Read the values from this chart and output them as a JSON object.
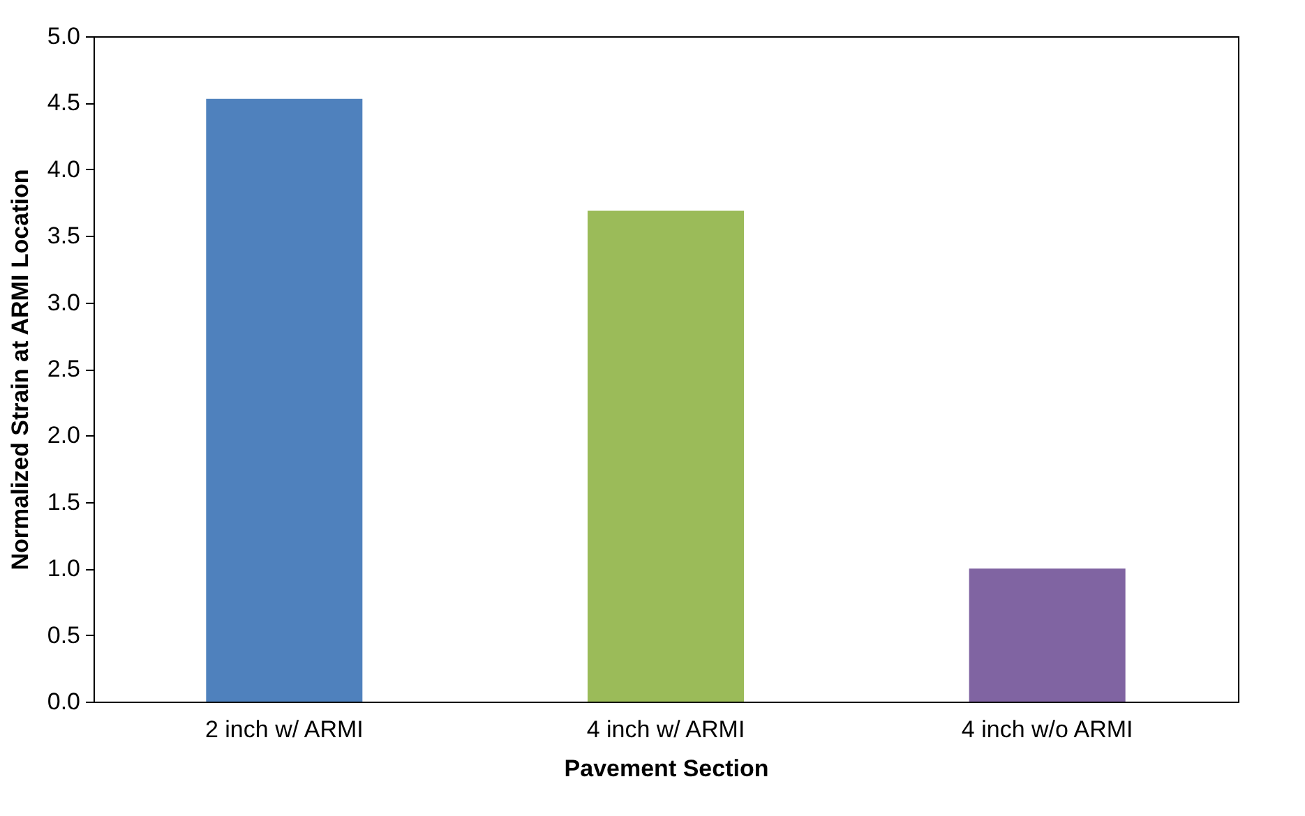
{
  "chart_data": {
    "type": "bar",
    "xlabel": "Pavement Section",
    "ylabel": "Normalized Strain at ARMI Location",
    "categories": [
      "2 inch w/ ARMI",
      "4 inch w/ ARMI",
      "4 inch w/o ARMI"
    ],
    "values": [
      4.53,
      3.69,
      1.0
    ],
    "colors": [
      "#4f81bd",
      "#9bbb59",
      "#8064a2"
    ],
    "ylim": [
      0,
      5
    ],
    "yticks": [
      {
        "value": 0,
        "label": "0.0"
      },
      {
        "value": 0.5,
        "label": "0.5"
      },
      {
        "value": 1,
        "label": "1.0"
      },
      {
        "value": 1.5,
        "label": "1.5"
      },
      {
        "value": 2,
        "label": "2.0"
      },
      {
        "value": 2.5,
        "label": "2.5"
      },
      {
        "value": 3,
        "label": "3.0"
      },
      {
        "value": 3.5,
        "label": "3.5"
      },
      {
        "value": 4,
        "label": "4.0"
      },
      {
        "value": 4.5,
        "label": "4.5"
      },
      {
        "value": 5,
        "label": "5.0"
      }
    ],
    "grid": false
  }
}
